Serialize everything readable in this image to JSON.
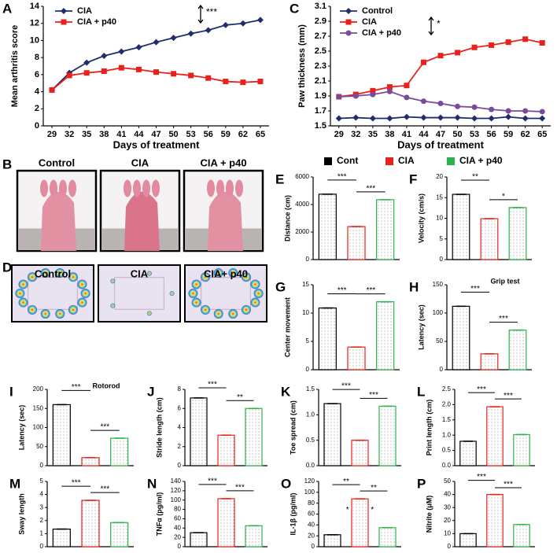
{
  "chart_data": [
    {
      "type": "line",
      "panel": "A",
      "ylabel": "Mean  arthritis score",
      "xlabel": "Days of treatment",
      "annotation": "***",
      "categories": [
        "29",
        "32",
        "35",
        "38",
        "41",
        "44",
        "47",
        "50",
        "53",
        "56",
        "59",
        "62",
        "65"
      ],
      "ylim": [
        0,
        14
      ],
      "yticks": [
        0,
        2,
        4,
        6,
        8,
        10,
        12,
        14
      ],
      "series": [
        {
          "name": "CIA",
          "color": "#1f2d6e",
          "marker": "diamond",
          "values": [
            4.2,
            6.2,
            7.4,
            8.2,
            8.7,
            9.2,
            9.8,
            10.3,
            10.8,
            11.2,
            11.8,
            12.0,
            12.4
          ]
        },
        {
          "name": "CIA + p40",
          "color": "#e8211c",
          "marker": "square",
          "values": [
            4.2,
            5.9,
            6.2,
            6.4,
            6.8,
            6.6,
            6.3,
            6.1,
            5.9,
            5.6,
            5.2,
            5.1,
            5.2
          ]
        }
      ]
    },
    {
      "type": "line",
      "panel": "C",
      "ylabel": "Paw thickness (mm)",
      "xlabel": "Days of treatment",
      "annotation": "*",
      "categories": [
        "29",
        "32",
        "35",
        "38",
        "41",
        "44",
        "47",
        "50",
        "53",
        "56",
        "59",
        "62",
        "65"
      ],
      "ylim": [
        1.5,
        3.1
      ],
      "yticks": [
        1.5,
        1.7,
        1.9,
        2.1,
        2.3,
        2.5,
        2.7,
        2.9,
        3.1
      ],
      "series": [
        {
          "name": "Control",
          "color": "#1f2d6e",
          "marker": "diamond",
          "values": [
            1.6,
            1.61,
            1.6,
            1.6,
            1.62,
            1.61,
            1.61,
            1.61,
            1.6,
            1.6,
            1.62,
            1.6,
            1.6
          ]
        },
        {
          "name": "CIA",
          "color": "#e8211c",
          "marker": "square",
          "values": [
            1.89,
            1.92,
            1.97,
            2.02,
            2.04,
            2.35,
            2.44,
            2.48,
            2.55,
            2.58,
            2.62,
            2.66,
            2.61
          ]
        },
        {
          "name": "CIA + p40",
          "color": "#7b4a9c",
          "marker": "circle",
          "values": [
            1.89,
            1.9,
            1.92,
            1.96,
            1.88,
            1.83,
            1.8,
            1.76,
            1.75,
            1.72,
            1.7,
            1.7,
            1.69
          ]
        }
      ]
    },
    {
      "type": "bar",
      "panel": "E",
      "ylabel": "Distance (cm)",
      "categories": [
        null,
        null,
        null
      ],
      "values": [
        4750,
        2400,
        4350
      ],
      "ylim": [
        0,
        6000
      ],
      "yticks": [
        0,
        2000,
        4000,
        6000
      ],
      "annotations": [
        "***",
        "***"
      ]
    },
    {
      "type": "bar",
      "panel": "F",
      "ylabel": "Velocity (cm/s)",
      "categories": [
        null,
        null,
        null
      ],
      "values": [
        15.8,
        9.9,
        12.6
      ],
      "ylim": [
        0,
        20
      ],
      "yticks": [
        0,
        5,
        10,
        15,
        20
      ],
      "annotations": [
        "**",
        "*"
      ]
    },
    {
      "type": "bar",
      "panel": "G",
      "ylabel": "Center movement",
      "categories": [
        null,
        null,
        null
      ],
      "values": [
        10.9,
        4.0,
        12.0
      ],
      "ylim": [
        0,
        15
      ],
      "yticks": [
        0,
        5,
        10,
        15
      ],
      "annotations": [
        "***",
        "***"
      ]
    },
    {
      "type": "bar",
      "panel": "H",
      "title": "Grip test",
      "ylabel": "Latency (sec)",
      "categories": [
        null,
        null,
        null
      ],
      "values": [
        112,
        28,
        70
      ],
      "ylim": [
        0,
        150
      ],
      "yticks": [
        0,
        50,
        100,
        150
      ],
      "annotations": [
        "***",
        "***"
      ]
    },
    {
      "type": "bar",
      "panel": "I",
      "title": "Rotorod",
      "ylabel": "Latency (sec)",
      "categories": [
        null,
        null,
        null
      ],
      "values": [
        160,
        21,
        72
      ],
      "ylim": [
        0,
        200
      ],
      "yticks": [
        0,
        50,
        100,
        150,
        200
      ],
      "annotations": [
        "***",
        "***"
      ]
    },
    {
      "type": "bar",
      "panel": "J",
      "ylabel": "Stride length (cm)",
      "categories": [
        null,
        null,
        null
      ],
      "values": [
        7.1,
        3.2,
        6.0
      ],
      "ylim": [
        0,
        8
      ],
      "yticks": [
        0,
        2,
        4,
        6,
        8
      ],
      "annotations": [
        "***",
        "**"
      ]
    },
    {
      "type": "bar",
      "panel": "K",
      "ylabel": "Toe spread (cm)",
      "categories": [
        null,
        null,
        null
      ],
      "values": [
        1.22,
        0.5,
        1.17
      ],
      "ylim": [
        0,
        1.5
      ],
      "yticks": [
        {
          "value": 0,
          "label": "0.0"
        },
        0.5,
        {
          "value": 1,
          "label": "1.0"
        },
        1.5
      ],
      "annotations": [
        "***",
        "***"
      ]
    },
    {
      "type": "bar",
      "panel": "L",
      "ylabel": "Print length (cm)",
      "categories": [
        null,
        null,
        null
      ],
      "values": [
        0.8,
        1.93,
        1.02
      ],
      "ylim": [
        0,
        2.5
      ],
      "yticks": [
        {
          "value": 0,
          "label": "0.0"
        },
        0.5,
        {
          "value": 1,
          "label": "1.0"
        },
        1.5,
        {
          "value": 2,
          "label": "2.0"
        },
        2.5
      ],
      "annotations": [
        "***",
        "***"
      ]
    },
    {
      "type": "bar",
      "panel": "M",
      "ylabel": "Sway length",
      "categories": [
        null,
        null,
        null
      ],
      "values": [
        1.35,
        3.55,
        1.85
      ],
      "ylim": [
        0,
        5
      ],
      "yticks": [
        0,
        1,
        2,
        3,
        4,
        5
      ],
      "annotations": [
        "***",
        "***"
      ]
    },
    {
      "type": "bar",
      "panel": "N",
      "ylabel": "TNFα (pg/ml)",
      "categories": [
        null,
        null,
        null
      ],
      "values": [
        30,
        103,
        45
      ],
      "ylim": [
        0,
        140
      ],
      "yticks": [
        0,
        20,
        40,
        60,
        80,
        100,
        120,
        140
      ],
      "annotations": [
        "***",
        "***"
      ]
    },
    {
      "type": "bar",
      "panel": "O",
      "ylabel": "IL-1β (pg/ml)",
      "categories": [
        null,
        null,
        null
      ],
      "values": [
        22,
        88,
        35
      ],
      "ylim": [
        0,
        120
      ],
      "yticks": [
        0,
        20,
        40,
        60,
        80,
        100,
        120
      ],
      "annotations": [
        "**",
        "**",
        "*",
        "*"
      ]
    },
    {
      "type": "bar",
      "panel": "P",
      "ylabel": "Nitrite (μM)",
      "categories": [
        null,
        null,
        null
      ],
      "values": [
        10,
        40,
        17
      ],
      "ylim": [
        0,
        50
      ],
      "yticks": [
        0,
        10,
        20,
        30,
        40,
        50
      ],
      "annotations": [
        "***",
        "***"
      ]
    }
  ],
  "legend": {
    "names": [
      "Cont",
      "CIA",
      "CIA + p40"
    ],
    "colors": [
      "#000000",
      "#e8211c",
      "#2db34a"
    ]
  },
  "image_panels": [
    {
      "panel": "B",
      "labels": [
        "Control",
        "CIA",
        "CIA + p40"
      ]
    },
    {
      "panel": "D",
      "labels": [
        "Control",
        "CIA",
        "CIA+ p40"
      ]
    }
  ]
}
